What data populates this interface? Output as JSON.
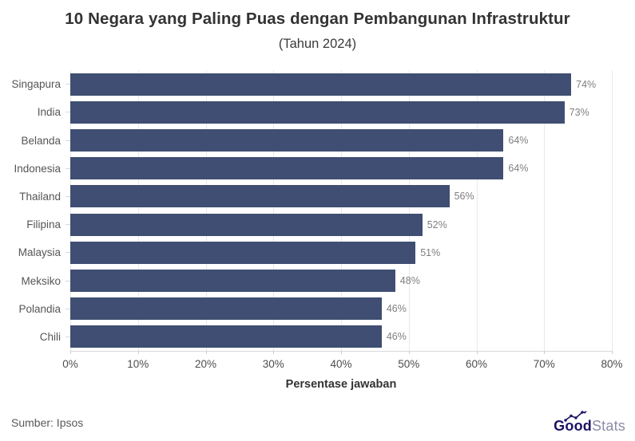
{
  "header": {
    "title": "10 Negara yang Paling Puas dengan Pembangunan Infrastruktur",
    "subtitle": "(Tahun 2024)"
  },
  "chart_data": {
    "type": "bar",
    "orientation": "horizontal",
    "title": "10 Negara yang Paling Puas dengan Pembangunan Infrastruktur",
    "subtitle": "(Tahun 2024)",
    "categories": [
      "Singapura",
      "India",
      "Belanda",
      "Indonesia",
      "Thailand",
      "Filipina",
      "Malaysia",
      "Meksiko",
      "Polandia",
      "Chili"
    ],
    "values": [
      74,
      73,
      64,
      64,
      56,
      52,
      51,
      48,
      46,
      46
    ],
    "value_suffix": "%",
    "xlabel": "Persentase jawaban",
    "xticks": [
      "0%",
      "10%",
      "20%",
      "30%",
      "40%",
      "50%",
      "60%",
      "70%",
      "80%"
    ],
    "xlim": [
      0,
      80
    ],
    "grid": true,
    "legend": "none"
  },
  "footer": {
    "source": "Sumber: Ipsos",
    "logo": {
      "bold": "Good",
      "light": "Stats"
    }
  },
  "colors": {
    "bar": "#3f4e72",
    "title": "#333333",
    "category_label": "#555555",
    "value_label": "#7f7f7f",
    "tick_label": "#4d4d4d",
    "gridline": "#e9e9e9",
    "axis_line": "#d9d9d9",
    "source_text": "#595959",
    "logo_bold": "#1b1464",
    "logo_light": "#8c8ca8",
    "background": "#ffffff"
  }
}
